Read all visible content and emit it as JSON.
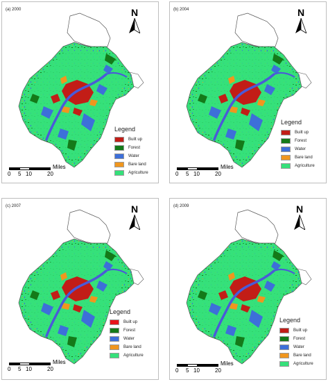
{
  "panels": [
    {
      "label": "(a) 2000"
    },
    {
      "label": "(b) 2004"
    },
    {
      "label": "(c) 2007"
    },
    {
      "label": "(d) 2009"
    }
  ],
  "north_label": "N",
  "legend": {
    "title": "Legend",
    "items": [
      "Built up",
      "Forest",
      "Water",
      "Bare land",
      "Agriculture"
    ]
  },
  "scale": {
    "ticks": [
      "0",
      "5",
      "10",
      "20"
    ],
    "units": "Miles"
  },
  "colors": {
    "built_up": "#c21d17",
    "forest": "#147a19",
    "water": "#3d6fd9",
    "bare_land": "#f0961e",
    "agriculture": "#35e07a",
    "river": "#4a5ad8",
    "boundary": "#555555"
  }
}
